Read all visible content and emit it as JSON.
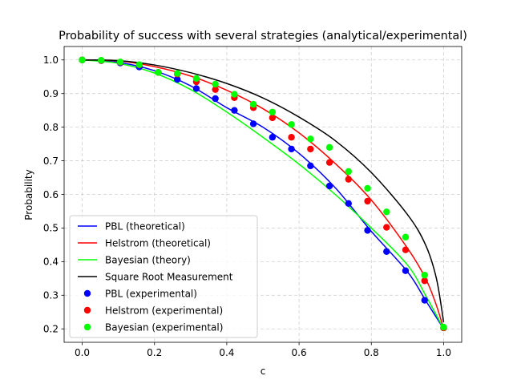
{
  "chart_data": {
    "type": "line",
    "title": "Probability of success with several strategies (analytical/experimental)",
    "xlabel": "c",
    "ylabel": "Probability",
    "xlim": [
      -0.05,
      1.05
    ],
    "ylim": [
      0.16,
      1.04
    ],
    "xticks": [
      0.0,
      0.2,
      0.4,
      0.6,
      0.8,
      1.0
    ],
    "xtick_labels": [
      "0.0",
      "0.2",
      "0.4",
      "0.6",
      "0.8",
      "1.0"
    ],
    "yticks": [
      0.2,
      0.3,
      0.4,
      0.5,
      0.6,
      0.7,
      0.8,
      0.9,
      1.0
    ],
    "ytick_labels": [
      "0.2",
      "0.3",
      "0.4",
      "0.5",
      "0.6",
      "0.7",
      "0.8",
      "0.9",
      "1.0"
    ],
    "grid": true,
    "legend_position": "lower-left",
    "x": [
      0.0,
      0.0526,
      0.1053,
      0.1579,
      0.2105,
      0.2632,
      0.3158,
      0.3684,
      0.4211,
      0.4737,
      0.5263,
      0.5789,
      0.6316,
      0.6842,
      0.7368,
      0.7895,
      0.8421,
      0.8947,
      0.9474,
      1.0
    ],
    "series": [
      {
        "name": "PBL (theoretical)",
        "kind": "line",
        "color": "#0000ff",
        "x": [
          0.0,
          0.1,
          0.2,
          0.3,
          0.4,
          0.5,
          0.6,
          0.7,
          0.8,
          0.9,
          0.95,
          1.0
        ],
        "values": [
          1.0,
          0.993,
          0.968,
          0.923,
          0.858,
          0.8,
          0.722,
          0.62,
          0.49,
          0.37,
          0.285,
          0.2
        ]
      },
      {
        "name": "Helstrom (theoretical)",
        "kind": "line",
        "color": "#ff0000",
        "x": [
          0.0,
          0.1,
          0.2,
          0.3,
          0.4,
          0.5,
          0.6,
          0.7,
          0.8,
          0.9,
          0.95,
          0.98,
          1.0
        ],
        "values": [
          1.0,
          0.997,
          0.98,
          0.952,
          0.91,
          0.855,
          0.783,
          0.692,
          0.583,
          0.44,
          0.35,
          0.27,
          0.2
        ]
      },
      {
        "name": "Bayesian (theory)",
        "kind": "line",
        "color": "#00ff00",
        "x": [
          0.0,
          0.1,
          0.2,
          0.3,
          0.4,
          0.5,
          0.6,
          0.7,
          0.8,
          0.9,
          0.95,
          1.0
        ],
        "values": [
          1.0,
          0.99,
          0.961,
          0.912,
          0.845,
          0.77,
          0.69,
          0.6,
          0.5,
          0.39,
          0.3,
          0.2
        ]
      },
      {
        "name": "Square Root Measurement",
        "kind": "line",
        "color": "#000000",
        "x": [
          0.0,
          0.1,
          0.2,
          0.3,
          0.4,
          0.5,
          0.6,
          0.7,
          0.8,
          0.9,
          0.95,
          0.98,
          1.0
        ],
        "values": [
          1.0,
          0.998,
          0.985,
          0.962,
          0.93,
          0.887,
          0.83,
          0.76,
          0.665,
          0.54,
          0.45,
          0.35,
          0.22
        ]
      },
      {
        "name": "PBL (experimental)",
        "kind": "scatter",
        "color": "#0000ff",
        "values": [
          1.0,
          0.998,
          0.991,
          0.979,
          0.963,
          0.942,
          0.915,
          0.885,
          0.85,
          0.81,
          0.77,
          0.735,
          0.685,
          0.625,
          0.573,
          0.493,
          0.43,
          0.373,
          0.285,
          0.203
        ]
      },
      {
        "name": "Helstrom (experimental)",
        "kind": "scatter",
        "color": "#ff0000",
        "values": [
          1.0,
          0.998,
          0.993,
          0.985,
          0.963,
          0.958,
          0.935,
          0.912,
          0.888,
          0.858,
          0.828,
          0.77,
          0.735,
          0.695,
          0.645,
          0.58,
          0.502,
          0.435,
          0.343,
          0.203
        ]
      },
      {
        "name": "Bayesian (experimental)",
        "kind": "scatter",
        "color": "#00ff00",
        "values": [
          1.0,
          0.999,
          0.994,
          0.986,
          0.963,
          0.96,
          0.945,
          0.928,
          0.898,
          0.868,
          0.845,
          0.808,
          0.765,
          0.74,
          0.668,
          0.618,
          0.548,
          0.473,
          0.36,
          0.205
        ]
      }
    ]
  }
}
